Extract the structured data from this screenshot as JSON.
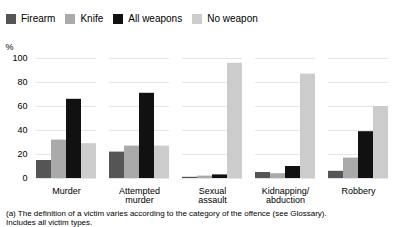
{
  "chart_data": {
    "type": "bar",
    "categories": [
      "Murder",
      "Attempted\nmurder",
      "Sexual\nassault",
      "Kidnapping/\nabduction",
      "Robbery"
    ],
    "series": [
      {
        "name": "Firearm",
        "color": "#555555",
        "values": [
          15,
          22,
          1,
          5,
          6
        ]
      },
      {
        "name": "Knife",
        "color": "#aaaaaa",
        "values": [
          32,
          27,
          2,
          4,
          17
        ]
      },
      {
        "name": "All weapons",
        "color": "#111111",
        "values": [
          66,
          71,
          3,
          10,
          39
        ]
      },
      {
        "name": "No weapon",
        "color": "#cccccc",
        "values": [
          29,
          27,
          96,
          87,
          60
        ]
      }
    ],
    "ylabel": "%",
    "ylim": [
      0,
      100
    ],
    "yticks": [
      0,
      20,
      40,
      60,
      80,
      100
    ],
    "grid": true,
    "legend": "upper left",
    "footnote": "(a) The definition of a victim varies according to the category of the offence (see Glossary).\nIncludes all victim types."
  }
}
